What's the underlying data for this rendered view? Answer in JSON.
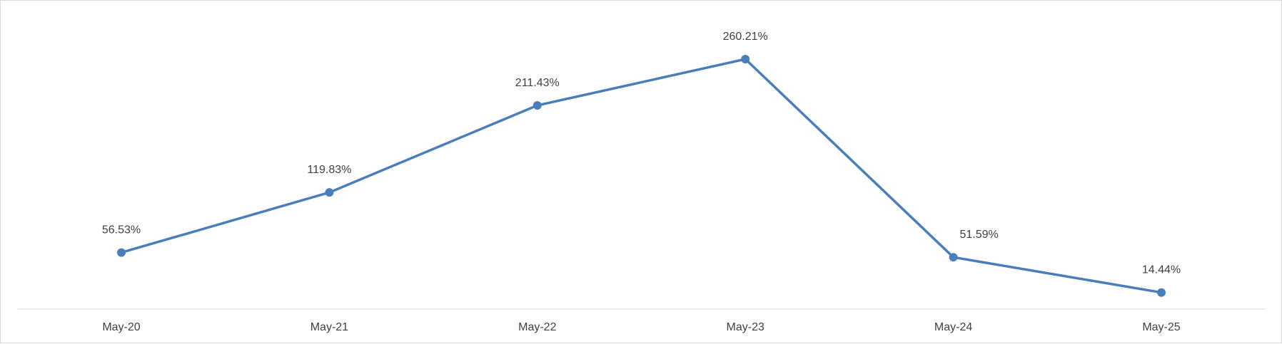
{
  "chart_data": {
    "type": "line",
    "categories": [
      "May-20",
      "May-21",
      "May-22",
      "May-23",
      "May-24",
      "May-25"
    ],
    "series": [
      {
        "values": [
          56.53,
          119.83,
          211.43,
          260.21,
          51.59,
          14.44
        ],
        "labels": [
          "56.53%",
          "119.83%",
          "211.43%",
          "260.21%",
          "51.59%",
          "14.44%"
        ],
        "color": "#4a7ebb"
      }
    ],
    "title": "",
    "xlabel": "",
    "ylabel": "",
    "ylim": [
      0,
      300
    ],
    "grid": false,
    "legend": "none",
    "axis_color": "#d9d9d9",
    "label_color": "#404040"
  }
}
